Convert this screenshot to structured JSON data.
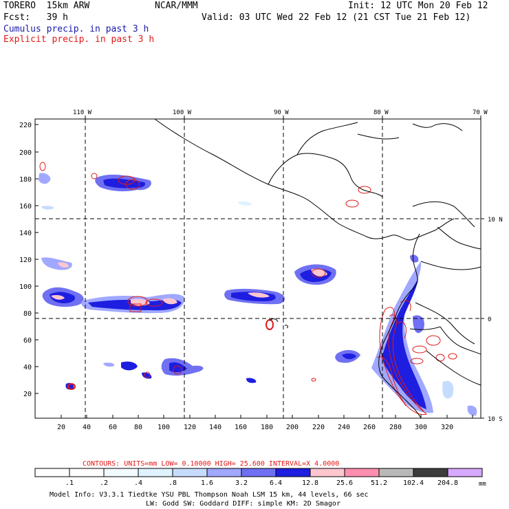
{
  "header": {
    "left1": "TORERO  15km ARW",
    "center1": "NCAR/MMM",
    "right1": "Init: 12 UTC Mon 20 Feb 12",
    "left2": "Fcst:   39 h",
    "right2": "Valid: 03 UTC Wed 22 Feb 12 (21 CST Tue 21 Feb 12)",
    "line3": "Cumulus precip. in past 3 h",
    "line4": "Explicit precip. in past 3 h"
  },
  "colors": {
    "cumulus": "#1a1aa8",
    "explicit": "#e01818"
  },
  "axes": {
    "top_labels": [
      "110 W",
      "100 W",
      "90 W",
      "80 W",
      "70 W"
    ],
    "right_labels": [
      "10 N",
      "0",
      "10 S"
    ],
    "y_ticks": [
      "220",
      "200",
      "180",
      "160",
      "140",
      "120",
      "100",
      "80",
      "60",
      "40",
      "20"
    ],
    "x_ticks": [
      "20",
      "40",
      "60",
      "80",
      "100",
      "120",
      "140",
      "160",
      "180",
      "200",
      "220",
      "240",
      "260",
      "280",
      "300",
      "320"
    ]
  },
  "contours": {
    "label": "CONTOURS:  UNITS=mm  LOW= 0.10000        HIGH=  25.600      INTERVAL=X  4.0000"
  },
  "legend": {
    "labels": [
      ".1",
      ".2",
      ".4",
      ".8",
      "1.6",
      "3.2",
      "6.4",
      "12.8",
      "25.6",
      "51.2",
      "102.4",
      "204.8"
    ],
    "unit": "mm",
    "colors": [
      "#ffffff",
      "#ffffff",
      "#f2fbff",
      "#dff3ff",
      "#c6dcff",
      "#a0a8ff",
      "#6f70f2",
      "#1e1ee0",
      "#ffc6ce",
      "#ff8fb0",
      "#b8b8b8",
      "#3c3c3c",
      "#d7a8ff"
    ]
  },
  "footer": {
    "line1": "Model Info: V3.3.1    Tiedtke YSU PBL  Thompson     Noah LSM  15 km,    44 levels,    66 sec",
    "line2": "LW: Godd SW: Goddard DIFF: simple KM: 2D Smagor"
  }
}
